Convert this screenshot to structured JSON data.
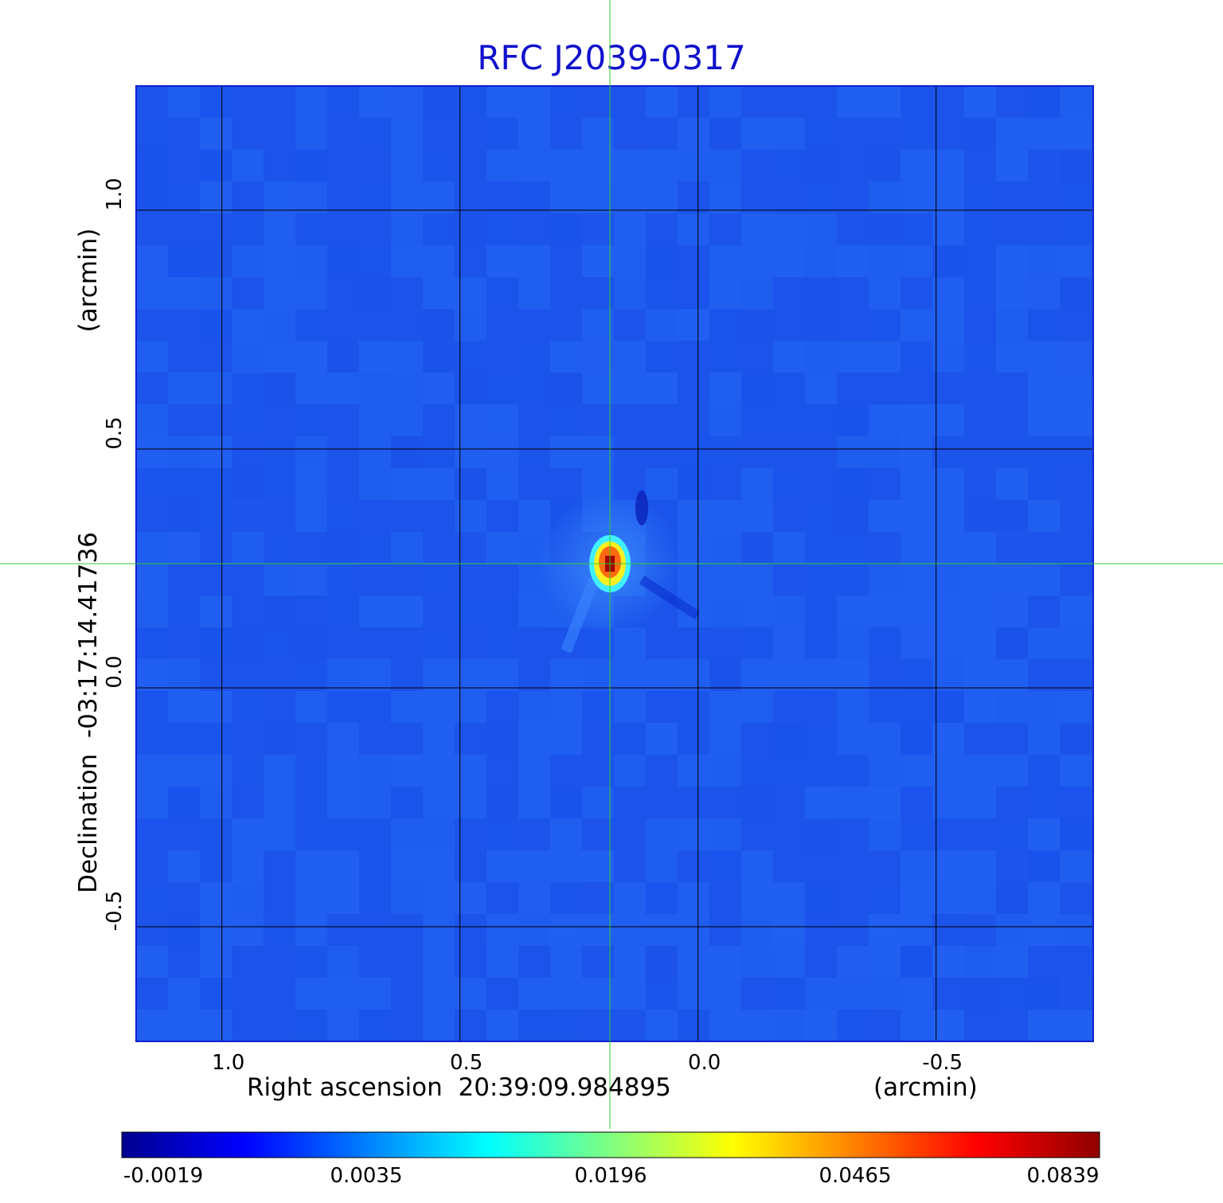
{
  "chart_data": {
    "type": "heatmap",
    "title": "RFC J2039-0317",
    "xlabel": "Right ascension  20:39:09.984895",
    "xunit": "(arcmin)",
    "ylabel": "Declination  -03:17:14.41736",
    "yunit": "(arcmin)",
    "xlim": [
      1.18,
      -0.83
    ],
    "ylim": [
      -0.74,
      1.26
    ],
    "x_ticks": [
      {
        "value": 1.0,
        "label": "1.0"
      },
      {
        "value": 0.5,
        "label": "0.5"
      },
      {
        "value": 0.0,
        "label": "0.0"
      },
      {
        "value": -0.5,
        "label": "-0.5"
      }
    ],
    "y_ticks": [
      {
        "value": 1.0,
        "label": "1.0"
      },
      {
        "value": 0.5,
        "label": "0.5"
      },
      {
        "value": 0.0,
        "label": "0.0"
      },
      {
        "value": -0.5,
        "label": "-0.5"
      }
    ],
    "grid": true,
    "crosshair": {
      "x": 0.185,
      "y": 0.26,
      "color": "#33cc33"
    },
    "source_peak": {
      "x": 0.185,
      "y": 0.26,
      "value": 0.0839
    },
    "colormap": "jet",
    "colorbar": {
      "ticks": [
        "-0.0019",
        "0.0035",
        "0.0196",
        "0.0465",
        "0.0839"
      ],
      "range": [
        -0.0019,
        0.0839
      ]
    }
  }
}
